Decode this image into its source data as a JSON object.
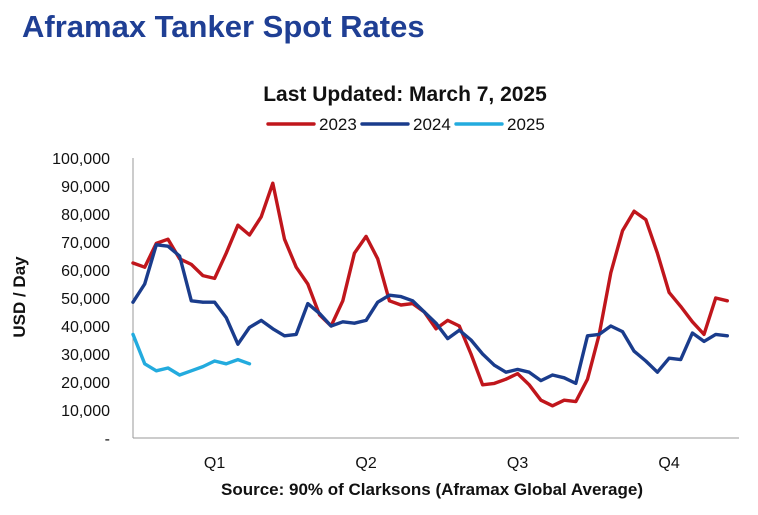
{
  "page_title": "Aframax Tanker Spot Rates",
  "colors": {
    "title": "#1f3f94",
    "s2023": "#c0161c",
    "s2024": "#1a3c8c",
    "s2025": "#23abde",
    "axis": "#999999",
    "text": "#111111"
  },
  "chart_data": {
    "type": "line",
    "title": "Last Updated: March 7, 2025",
    "ylabel": "USD / Day",
    "xlabel": "Source: 90% of Clarksons (Aframax Global Average)",
    "ylim": [
      0,
      100000
    ],
    "xlim": [
      1,
      53
    ],
    "y_ticks": [
      {
        "value": 0,
        "label": "-"
      },
      {
        "value": 10000,
        "label": "10,000"
      },
      {
        "value": 20000,
        "label": "20,000"
      },
      {
        "value": 30000,
        "label": "30,000"
      },
      {
        "value": 40000,
        "label": "40,000"
      },
      {
        "value": 50000,
        "label": "50,000"
      },
      {
        "value": 60000,
        "label": "60,000"
      },
      {
        "value": 70000,
        "label": "70,000"
      },
      {
        "value": 80000,
        "label": "80,000"
      },
      {
        "value": 90000,
        "label": "90,000"
      },
      {
        "value": 100000,
        "label": "100,000"
      }
    ],
    "quarters": [
      {
        "label": "Q1",
        "week": 8
      },
      {
        "label": "Q2",
        "week": 21
      },
      {
        "label": "Q3",
        "week": 34
      },
      {
        "label": "Q4",
        "week": 47
      }
    ],
    "series": [
      {
        "name": "2023",
        "color_key": "s2023",
        "values": [
          62500,
          61000,
          69500,
          71000,
          64000,
          62000,
          58000,
          57000,
          66000,
          76000,
          72500,
          79000,
          91000,
          71000,
          61000,
          55000,
          44000,
          40000,
          49000,
          66000,
          72000,
          64000,
          49000,
          47500,
          48000,
          45000,
          39000,
          42000,
          40000,
          30000,
          19000,
          19500,
          21000,
          23000,
          19000,
          13500,
          11500,
          13500,
          13000,
          21000,
          37000,
          59000,
          74000,
          81000,
          78000,
          66000,
          52000,
          47000,
          41500,
          37000,
          50000,
          49000
        ]
      },
      {
        "name": "2024",
        "color_key": "s2024",
        "values": [
          48500,
          55000,
          69000,
          68500,
          65000,
          49000,
          48500,
          48500,
          43000,
          33500,
          39500,
          42000,
          39000,
          36500,
          37000,
          48000,
          44500,
          40000,
          41500,
          41000,
          42000,
          48500,
          51000,
          50500,
          49000,
          45000,
          41000,
          35500,
          38500,
          35000,
          30000,
          26000,
          23500,
          24500,
          23500,
          20500,
          22500,
          21500,
          19500,
          36500,
          37000,
          40000,
          38000,
          31000,
          27500,
          23500,
          28500,
          28000,
          37500,
          34500,
          37000,
          36500
        ]
      },
      {
        "name": "2025",
        "color_key": "s2025",
        "values": [
          37000,
          26500,
          24000,
          25000,
          22500,
          24000,
          25500,
          27500,
          26500,
          28000,
          26500
        ]
      }
    ]
  }
}
